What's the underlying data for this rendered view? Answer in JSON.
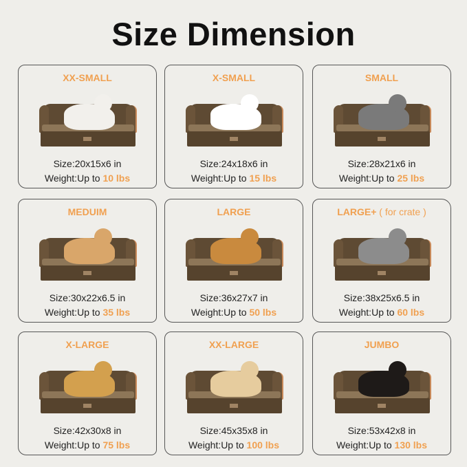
{
  "title": "Size Dimension",
  "size_prefix": "Size:",
  "weight_prefix": "Weight:",
  "up_to": "Up to",
  "colors": {
    "accent": "#f0a050",
    "bed": "#5e4a33"
  },
  "sizes": [
    {
      "name": "XX-SMALL",
      "sub": "",
      "dims": "20x15x6 in",
      "weight": "10 lbs",
      "pet": "cat",
      "pet_color": "#f2f0ec"
    },
    {
      "name": "X-SMALL",
      "sub": "",
      "dims": "24x18x6 in",
      "weight": "15 lbs",
      "pet": "spitz",
      "pet_color": "#ffffff"
    },
    {
      "name": "SMALL",
      "sub": "",
      "dims": "28x21x6 in",
      "weight": "25 lbs",
      "pet": "schnauzer",
      "pet_color": "#7a7a7a"
    },
    {
      "name": "MEDUIM",
      "sub": "",
      "dims": "30x22x6.5 in",
      "weight": "35 lbs",
      "pet": "corgi",
      "pet_color": "#d9a66a"
    },
    {
      "name": "LARGE",
      "sub": "",
      "dims": "36x27x7 in",
      "weight": "50 lbs",
      "pet": "golden retriever",
      "pet_color": "#c98a3e"
    },
    {
      "name": "LARGE+",
      "sub": "( for crate )",
      "dims": "38x25x6.5 in",
      "weight": "60 lbs",
      "pet": "australian shepherd",
      "pet_color": "#8c8c8c"
    },
    {
      "name": "X-LARGE",
      "sub": "",
      "dims": "42x30x8 in",
      "weight": "75 lbs",
      "pet": "golden retriever",
      "pet_color": "#d3a04e"
    },
    {
      "name": "XX-LARGE",
      "sub": "",
      "dims": "45x35x8 in",
      "weight": "100 lbs",
      "pet": "labrador",
      "pet_color": "#e6cc9e"
    },
    {
      "name": "JUMBO",
      "sub": "",
      "dims": "53x42x8 in",
      "weight": "130 lbs",
      "pet": "bernese mountain dog",
      "pet_color": "#1e1a18"
    }
  ]
}
